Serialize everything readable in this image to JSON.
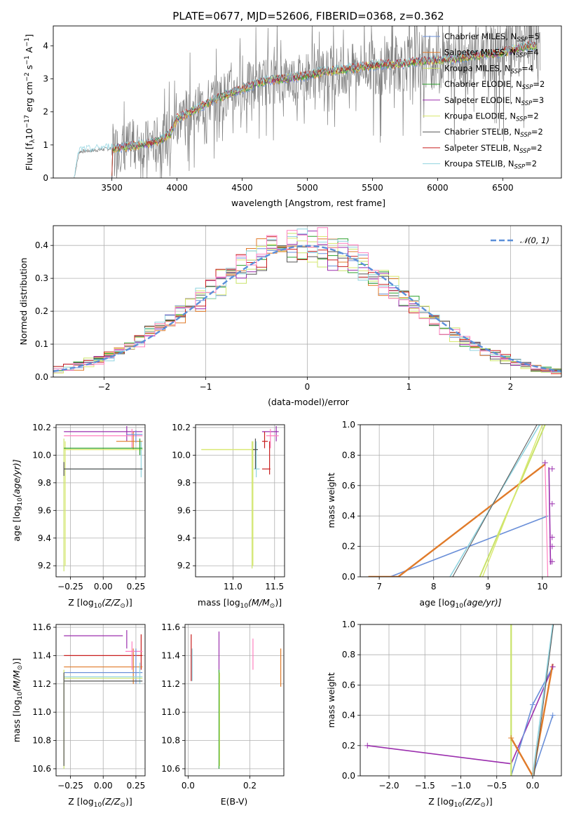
{
  "colors": [
    "#6a8fd8",
    "#e07b2a",
    "#c9e36a",
    "#2ca02c",
    "#9b2fae",
    "#d9e86f",
    "#555555",
    "#c81e1e",
    "#8fd3df"
  ],
  "extra_colors": {
    "pink": "#ff7fbf",
    "gray_spectrum": "#7f7f7f",
    "normal_curve": "#5b8fd9"
  },
  "chart_data": [
    {
      "type": "line",
      "title": "PLATE=0677, MJD=52606, FIBERID=0368, z=0.362",
      "xlabel": "wavelength [Angstrom, rest frame]",
      "ylabel": "Flux [f",
      "ylabel_parts": [
        "Flux [f",
        "λ",
        "10",
        "−17",
        " erg cm",
        "−2",
        " s",
        "−1",
        " A",
        "−1",
        "]"
      ],
      "xlim": [
        3050,
        6950
      ],
      "ylim": [
        0,
        4.6
      ],
      "xticks": [
        3500,
        4000,
        4500,
        5000,
        5500,
        6000,
        6500
      ],
      "yticks": [
        0,
        1,
        2,
        3,
        4
      ],
      "grid": false,
      "legend_placement": "upper-right",
      "series": [
        {
          "name": "Chabrier MILES, N",
          "sub": "SSP",
          "suffix": "=5"
        },
        {
          "name": "Salpeter MILES, N",
          "sub": "SSP",
          "suffix": "=4"
        },
        {
          "name": "Kroupa MILES, N",
          "sub": "SSP",
          "suffix": "=4"
        },
        {
          "name": "Chabrier ELODIE, N",
          "sub": "SSP",
          "suffix": "=2"
        },
        {
          "name": "Salpeter ELODIE, N",
          "sub": "SSP",
          "suffix": "=3"
        },
        {
          "name": "Kroupa ELODIE, N",
          "sub": "SSP",
          "suffix": "=2"
        },
        {
          "name": "Chabrier STELIB, N",
          "sub": "SSP",
          "suffix": "=2"
        },
        {
          "name": "Salpeter STELIB, N",
          "sub": "SSP",
          "suffix": "=2"
        },
        {
          "name": "Kroupa STELIB, N",
          "sub": "SSP",
          "suffix": "=2"
        }
      ],
      "model_shape": {
        "x": [
          3210,
          3250,
          3400,
          3500,
          3600,
          3700,
          3800,
          3900,
          3950,
          4000,
          4100,
          4200,
          4300,
          4400,
          4500,
          4600,
          4700,
          4800,
          4900,
          5000,
          5100,
          5200,
          5300,
          5400,
          5500,
          5600,
          5700,
          5800,
          5900,
          6000,
          6100,
          6200,
          6300,
          6400,
          6500,
          6600,
          6700,
          6750
        ],
        "y": [
          0,
          0.8,
          0.85,
          0.9,
          0.95,
          1.0,
          1.05,
          1.2,
          1.35,
          1.8,
          2.0,
          2.2,
          2.4,
          2.55,
          2.7,
          2.85,
          2.95,
          3.0,
          3.05,
          3.1,
          3.2,
          3.25,
          3.3,
          3.35,
          3.4,
          3.45,
          3.45,
          3.5,
          3.55,
          3.55,
          3.6,
          3.65,
          3.7,
          3.75,
          3.8,
          3.9,
          4.0,
          4.0
        ]
      }
    },
    {
      "type": "line",
      "xlabel": "(data-model)/error",
      "ylabel": "Normed distribution",
      "xlim": [
        -2.5,
        2.5
      ],
      "ylim": [
        0,
        0.46
      ],
      "xticks": [
        -2,
        -1,
        0,
        1,
        2
      ],
      "yticks": [
        0.0,
        0.1,
        0.2,
        0.3,
        0.4
      ],
      "grid": true,
      "legend": "𝒩(0, 1)",
      "legend_placement": "upper-right"
    },
    {
      "type": "scatter",
      "xlabel": "Z [log",
      "xlabel_parts": [
        "Z [log",
        "10",
        "(Z/Z",
        "⊙",
        ")]"
      ],
      "ylabel_parts": [
        "age  [log",
        "10",
        "(age/yr)]"
      ],
      "xlim": [
        -0.36,
        0.32
      ],
      "ylim": [
        9.12,
        10.22
      ],
      "xticks": [
        -0.25,
        0.0,
        0.25
      ],
      "xticklabels": [
        "−0.25",
        "0.00",
        "0.25"
      ],
      "yticks": [
        9.2,
        9.4,
        9.6,
        9.8,
        10.0,
        10.2
      ],
      "grid": true
    },
    {
      "type": "scatter",
      "xlabel_parts": [
        "mass [log",
        "10",
        "(M/M",
        "⊙",
        ")]"
      ],
      "xlim": [
        10.55,
        11.62
      ],
      "ylim": [
        9.12,
        10.22
      ],
      "xticks": [
        11.0,
        11.5
      ],
      "yticks": [
        9.2,
        9.4,
        9.6,
        9.8,
        10.0,
        10.2
      ],
      "grid": true
    },
    {
      "type": "line",
      "xlabel_parts": [
        "age  [log",
        "10",
        "(age/yr)]"
      ],
      "ylabel": "mass weight",
      "xlim": [
        6.65,
        10.35
      ],
      "ylim": [
        0,
        1.0
      ],
      "xticks": [
        7,
        8,
        9,
        10
      ],
      "yticks": [
        0.0,
        0.2,
        0.4,
        0.6,
        0.8,
        1.0
      ],
      "grid": true
    },
    {
      "type": "scatter",
      "xlabel_parts": [
        "Z [log",
        "10",
        "(Z/Z",
        "⊙",
        ")]"
      ],
      "ylabel_parts": [
        "mass [log",
        "10",
        "(M/M",
        "⊙",
        ")]"
      ],
      "xlim": [
        -0.36,
        0.32
      ],
      "ylim": [
        10.55,
        11.62
      ],
      "xticks": [
        -0.25,
        0.0,
        0.25
      ],
      "xticklabels": [
        "−0.25",
        "0.00",
        "0.25"
      ],
      "yticks": [
        10.6,
        10.8,
        11.0,
        11.2,
        11.4,
        11.6
      ],
      "grid": true
    },
    {
      "type": "scatter",
      "xlabel": "E(B-V)",
      "xlim": [
        -0.01,
        0.31
      ],
      "ylim": [
        10.55,
        11.62
      ],
      "xticks": [
        0.0,
        0.2
      ],
      "yticks": [
        10.6,
        10.8,
        11.0,
        11.2,
        11.4,
        11.6
      ],
      "grid": true
    },
    {
      "type": "line",
      "xlabel_parts": [
        "Z [log",
        "10",
        "(Z/Z",
        "⊙",
        ")]"
      ],
      "ylabel": "mass weight",
      "xlim": [
        -2.4,
        0.4
      ],
      "ylim": [
        0,
        1.0
      ],
      "xticks": [
        -2.0,
        -1.5,
        -1.0,
        -0.5,
        0.0
      ],
      "xticklabels": [
        "−2.0",
        "−1.5",
        "−1.0",
        "−0.5",
        "0.0"
      ],
      "yticks": [
        0.0,
        0.2,
        0.4,
        0.6,
        0.8,
        1.0
      ],
      "grid": true
    }
  ]
}
